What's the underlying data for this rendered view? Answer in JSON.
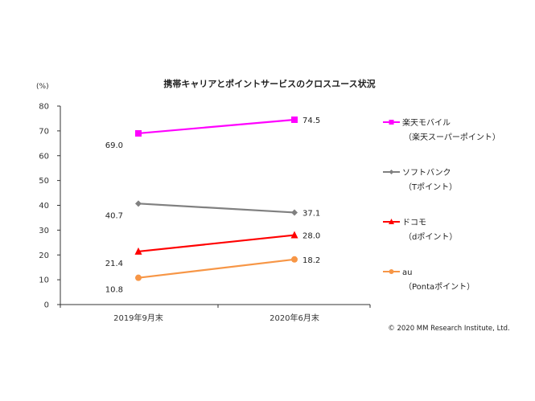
{
  "chart_data": {
    "type": "line",
    "title": "携帯キャリアとポイントサービスのクロスユース状況",
    "unit_label": "(%)",
    "categories": [
      "2019年9月末",
      "2020年6月末"
    ],
    "ylim": [
      0,
      80
    ],
    "yticks": [
      0,
      10,
      20,
      30,
      40,
      50,
      60,
      70,
      80
    ],
    "grid": false,
    "legend_position": "right",
    "series": [
      {
        "name": "楽天モバイル",
        "sub": "（楽天スーパーポイント）",
        "values": [
          69.0,
          74.5
        ],
        "labels": [
          "69.0",
          "74.5"
        ],
        "color": "#ff00ff",
        "marker": "square"
      },
      {
        "name": "ソフトバンク",
        "sub": "（Tポイント）",
        "values": [
          40.7,
          37.1
        ],
        "labels": [
          "40.7",
          "37.1"
        ],
        "color": "#808080",
        "marker": "diamond"
      },
      {
        "name": "ドコモ",
        "sub": "（dポイント）",
        "values": [
          21.4,
          28.0
        ],
        "labels": [
          "21.4",
          "28.0"
        ],
        "color": "#ff0000",
        "marker": "triangle"
      },
      {
        "name": "au",
        "sub": "（Pontaポイント）",
        "values": [
          10.8,
          18.2
        ],
        "labels": [
          "10.8",
          "18.2"
        ],
        "color": "#f79646",
        "marker": "circle"
      }
    ]
  },
  "footer": {
    "copyright": "© 2020  MM Research Institute, Ltd."
  }
}
